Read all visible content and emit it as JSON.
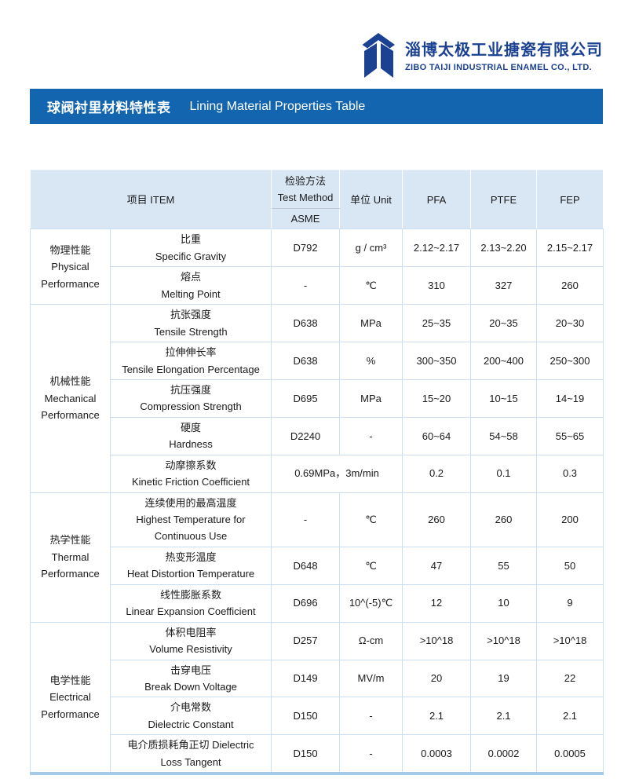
{
  "company": {
    "logo_icon": "taiji-arrow-logo",
    "name_zh": "淄博太极工业搪瓷有限公司",
    "name_en": "ZIBO TAIJI INDUSTRIAL ENAMEL CO., LTD.",
    "brand_color": "#1b4193"
  },
  "banner": {
    "title_zh": "球阀衬里材料特性表",
    "title_en": "Lining Material Properties Table",
    "bg_color": "#1365af"
  },
  "table": {
    "header": {
      "item": "项目 ITEM",
      "test_method_zh": "检验方法",
      "test_method_en": "Test Method",
      "test_method_std": "ASME",
      "unit": "单位  Unit",
      "materials": [
        "PFA",
        "PTFE",
        "FEP"
      ]
    },
    "header_bg": "#d9e7f5",
    "border_color": "#cbe0f2",
    "bottom_bar_color": "#a6cbe8",
    "sections": [
      {
        "category_zh": "物理性能",
        "category_en": "Physical Performance",
        "rows": [
          {
            "item_zh": "比重",
            "item_en": "Specific Gravity",
            "method": "D792",
            "unit": "g / cm³",
            "values": [
              "2.12~2.17",
              "2.13~2.20",
              "2.15~2.17"
            ]
          },
          {
            "item_zh": "熔点",
            "item_en": "Melting Point",
            "method": "-",
            "unit": "℃",
            "values": [
              "310",
              "327",
              "260"
            ]
          }
        ]
      },
      {
        "category_zh": "机械性能",
        "category_en": "Mechanical Performance",
        "rows": [
          {
            "item_zh": "抗张强度",
            "item_en": "Tensile Strength",
            "method": "D638",
            "unit": "MPa",
            "values": [
              "25~35",
              "20~35",
              "20~30"
            ]
          },
          {
            "item_zh": "拉伸伸长率",
            "item_en": "Tensile Elongation Percentage",
            "method": "D638",
            "unit": "%",
            "values": [
              "300~350",
              "200~400",
              "250~300"
            ]
          },
          {
            "item_zh": "抗压强度",
            "item_en": "Compression Strength",
            "method": "D695",
            "unit": "MPa",
            "values": [
              "15~20",
              "10~15",
              "14~19"
            ]
          },
          {
            "item_zh": "硬度",
            "item_en": "Hardness",
            "method": "D2240",
            "unit": "-",
            "values": [
              "60~64",
              "54~58",
              "55~65"
            ]
          },
          {
            "item_zh": "动摩擦系数",
            "item_en": "Kinetic Friction Coefficient",
            "method_unit_merged": "0.69MPa，3m/min",
            "values": [
              "0.2",
              "0.1",
              "0.3"
            ]
          }
        ]
      },
      {
        "category_zh": "热学性能",
        "category_en": "Thermal Performance",
        "rows": [
          {
            "item_zh": "连续使用的最高温度",
            "item_en": "Highest Temperature for Continuous Use",
            "method": "-",
            "unit": "℃",
            "values": [
              "260",
              "260",
              "200"
            ],
            "tall": true
          },
          {
            "item_zh": "热变形温度",
            "item_en": "Heat Distortion Temperature",
            "method": "D648",
            "unit": "℃",
            "values": [
              "47",
              "55",
              "50"
            ]
          },
          {
            "item_zh": "线性膨胀系数",
            "item_en": "Linear Expansion Coefficient",
            "method": "D696",
            "unit": "10^(-5)℃",
            "values": [
              "12",
              "10",
              "9"
            ]
          }
        ]
      },
      {
        "category_zh": "电学性能",
        "category_en": "Electrical Performance",
        "rows": [
          {
            "item_zh": "体积电阻率",
            "item_en": "Volume Resistivity",
            "method": "D257",
            "unit": "Ω-cm",
            "values": [
              ">10^18",
              ">10^18",
              ">10^18"
            ]
          },
          {
            "item_zh": "击穿电压",
            "item_en": "Break Down Voltage",
            "method": "D149",
            "unit": "MV/m",
            "values": [
              "20",
              "19",
              "22"
            ]
          },
          {
            "item_zh": "介电常数",
            "item_en": "Dielectric Constant",
            "method": "D150",
            "unit": "-",
            "values": [
              "2.1",
              "2.1",
              "2.1"
            ]
          },
          {
            "item_zh": "电介质损耗角正切 Dielectric",
            "item_en": "Loss Tangent",
            "method": "D150",
            "unit": "-",
            "values": [
              "0.0003",
              "0.0002",
              "0.0005"
            ]
          }
        ]
      }
    ]
  }
}
